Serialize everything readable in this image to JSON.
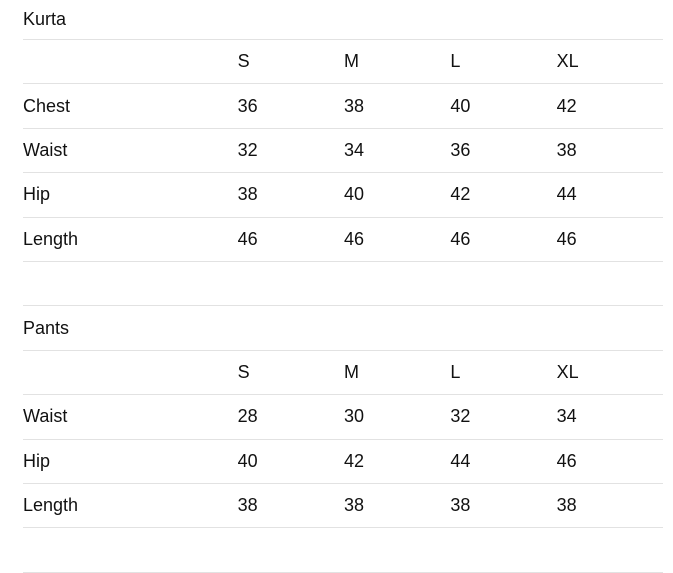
{
  "tables": [
    {
      "title": "Kurta",
      "sizes": [
        "S",
        "M",
        "L",
        "XL"
      ],
      "rows": [
        {
          "label": "Chest",
          "values": [
            "36",
            "38",
            "40",
            "42"
          ]
        },
        {
          "label": "Waist",
          "values": [
            "32",
            "34",
            "36",
            "38"
          ]
        },
        {
          "label": "Hip",
          "values": [
            "38",
            "40",
            "42",
            "44"
          ]
        },
        {
          "label": "Length",
          "values": [
            "46",
            "46",
            "46",
            "46"
          ]
        }
      ]
    },
    {
      "title": "Pants",
      "sizes": [
        "S",
        "M",
        "L",
        "XL"
      ],
      "rows": [
        {
          "label": "Waist",
          "values": [
            "28",
            "30",
            "32",
            "34"
          ]
        },
        {
          "label": "Hip",
          "values": [
            "40",
            "42",
            "44",
            "46"
          ]
        },
        {
          "label": "Length",
          "values": [
            "38",
            "38",
            "38",
            "38"
          ]
        }
      ]
    }
  ]
}
